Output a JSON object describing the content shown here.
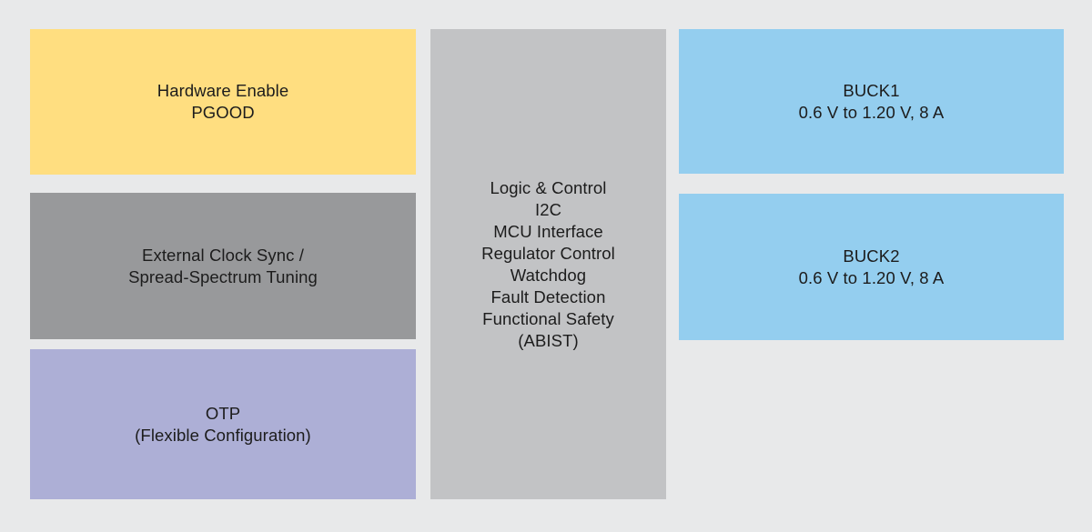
{
  "diagram": {
    "background": "#e8e9ea",
    "text_color": "#1c1c1c",
    "blocks": {
      "hardware_enable": {
        "color": "#ffde80",
        "lines": [
          "Hardware Enable",
          "PGOOD"
        ]
      },
      "clock_sync": {
        "color": "#98999b",
        "lines": [
          "External Clock Sync /",
          "Spread-Spectrum Tuning"
        ]
      },
      "otp": {
        "color": "#adafd6",
        "lines": [
          "OTP",
          "(Flexible Configuration)"
        ]
      },
      "logic_control": {
        "color": "#c2c3c5",
        "lines": [
          "Logic & Control",
          "I2C",
          "MCU Interface",
          "Regulator Control",
          "Watchdog",
          "Fault Detection",
          "Functional Safety",
          "(ABIST)"
        ]
      },
      "buck1": {
        "color": "#94ceef",
        "lines": [
          "BUCK1",
          "0.6 V to 1.20 V, 8 A"
        ]
      },
      "buck2": {
        "color": "#94ceef",
        "lines": [
          "BUCK2",
          "0.6 V to 1.20 V, 8 A"
        ]
      }
    }
  }
}
